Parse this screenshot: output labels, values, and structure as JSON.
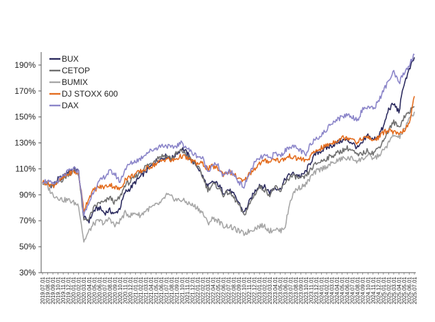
{
  "chart_data": {
    "type": "line",
    "title": "",
    "xlabel": "",
    "ylabel": "",
    "ylim": [
      30,
      200
    ],
    "yticks": [
      "30%",
      "50%",
      "70%",
      "90%",
      "110%",
      "130%",
      "150%",
      "170%",
      "190%"
    ],
    "ytick_values": [
      30,
      50,
      70,
      90,
      110,
      130,
      150,
      170,
      190
    ],
    "legend_position": "top-left",
    "grid": false,
    "x": [
      "2019.07.01",
      "2019.08.01",
      "2019.09.01",
      "2019.10.01",
      "2019.11.01",
      "2019.12.01",
      "2020.01.01",
      "2020.02.01",
      "2020.03.01",
      "2020.04.01",
      "2020.05.01",
      "2020.06.01",
      "2020.07.01",
      "2020.08.01",
      "2020.09.01",
      "2020.10.01",
      "2020.11.01",
      "2020.12.01",
      "2021.01.01",
      "2021.02.01",
      "2021.03.01",
      "2021.04.01",
      "2021.05.01",
      "2021.06.01",
      "2021.07.01",
      "2021.08.01",
      "2021.09.01",
      "2021.10.01",
      "2021.11.01",
      "2021.12.01",
      "2022.01.01",
      "2022.02.01",
      "2022.03.01",
      "2022.04.01",
      "2022.05.01",
      "2022.06.01",
      "2022.07.01",
      "2022.08.01",
      "2022.09.01",
      "2022.10.01",
      "2022.11.01",
      "2022.12.01",
      "2023.01.01",
      "2023.02.01",
      "2023.03.01",
      "2023.04.01",
      "2023.05.01",
      "2023.06.01",
      "2023.07.01",
      "2023.08.01",
      "2023.09.01",
      "2023.10.01",
      "2023.11.01",
      "2023.12.01",
      "2024.01.01",
      "2024.02.01",
      "2024.03.01",
      "2024.04.01",
      "2024.05.01",
      "2024.06.01",
      "2024.07.01",
      "2024.08.01",
      "2024.09.01",
      "2024.10.01",
      "2024.11.01",
      "2024.12.01",
      "2025.01.01",
      "2025.02.01",
      "2025.03.01",
      "2025.04.01",
      "2025.05.01",
      "2025.06.01",
      "2025.07.01"
    ],
    "series": [
      {
        "name": "BUX",
        "color": "#2b2a5e",
        "values": [
          100,
          98,
          97,
          102,
          104,
          108,
          110,
          108,
          72,
          70,
          78,
          80,
          76,
          78,
          75,
          80,
          92,
          95,
          100,
          104,
          108,
          112,
          116,
          118,
          120,
          118,
          122,
          126,
          122,
          116,
          112,
          104,
          96,
          100,
          98,
          92,
          94,
          90,
          84,
          76,
          84,
          92,
          98,
          96,
          92,
          96,
          94,
          102,
          106,
          106,
          104,
          108,
          116,
          122,
          124,
          126,
          128,
          130,
          132,
          132,
          130,
          126,
          130,
          136,
          132,
          136,
          142,
          156,
          160,
          154,
          176,
          186,
          196
        ]
      },
      {
        "name": "CETOP",
        "color": "#707070",
        "values": [
          100,
          98,
          96,
          100,
          102,
          106,
          108,
          106,
          70,
          72,
          80,
          84,
          84,
          88,
          84,
          88,
          98,
          100,
          104,
          108,
          112,
          114,
          118,
          120,
          120,
          118,
          122,
          124,
          120,
          116,
          112,
          104,
          94,
          98,
          96,
          90,
          92,
          88,
          82,
          74,
          82,
          90,
          96,
          94,
          90,
          96,
          92,
          100,
          104,
          104,
          102,
          104,
          110,
          114,
          116,
          118,
          120,
          122,
          124,
          126,
          124,
          120,
          122,
          124,
          122,
          126,
          132,
          140,
          146,
          142,
          150,
          154,
          158
        ]
      },
      {
        "name": "BUMIX",
        "color": "#a6a6a6",
        "values": [
          100,
          96,
          90,
          88,
          86,
          86,
          84,
          82,
          54,
          62,
          68,
          70,
          68,
          72,
          66,
          70,
          76,
          74,
          76,
          74,
          78,
          80,
          82,
          84,
          90,
          88,
          86,
          86,
          84,
          82,
          80,
          76,
          68,
          72,
          70,
          66,
          66,
          64,
          62,
          60,
          62,
          64,
          66,
          66,
          62,
          64,
          62,
          66,
          86,
          94,
          96,
          98,
          104,
          108,
          110,
          112,
          114,
          116,
          118,
          118,
          118,
          116,
          118,
          120,
          118,
          120,
          124,
          130,
          136,
          134,
          140,
          148,
          154
        ]
      },
      {
        "name": "DJ STOXX 600",
        "color": "#e36c1e",
        "values": [
          100,
          99,
          97,
          100,
          103,
          106,
          108,
          106,
          78,
          88,
          94,
          96,
          96,
          98,
          96,
          94,
          102,
          104,
          106,
          108,
          110,
          112,
          114,
          116,
          118,
          116,
          118,
          120,
          118,
          116,
          114,
          114,
          110,
          112,
          110,
          106,
          108,
          106,
          102,
          100,
          106,
          110,
          114,
          116,
          116,
          118,
          116,
          118,
          120,
          118,
          118,
          116,
          120,
          124,
          126,
          128,
          130,
          132,
          134,
          134,
          134,
          130,
          134,
          134,
          132,
          134,
          138,
          140,
          138,
          136,
          140,
          144,
          166
        ]
      },
      {
        "name": "DAX",
        "color": "#8b85c9",
        "values": [
          101,
          100,
          98,
          101,
          104,
          108,
          110,
          108,
          74,
          84,
          94,
          100,
          104,
          108,
          106,
          100,
          110,
          114,
          116,
          118,
          122,
          124,
          126,
          128,
          128,
          126,
          128,
          130,
          126,
          122,
          120,
          118,
          108,
          114,
          112,
          104,
          108,
          106,
          100,
          96,
          106,
          114,
          118,
          120,
          118,
          122,
          120,
          124,
          128,
          126,
          124,
          120,
          130,
          134,
          136,
          140,
          146,
          148,
          150,
          152,
          150,
          148,
          156,
          158,
          156,
          162,
          170,
          178,
          184,
          176,
          184,
          190,
          198
        ]
      }
    ]
  }
}
